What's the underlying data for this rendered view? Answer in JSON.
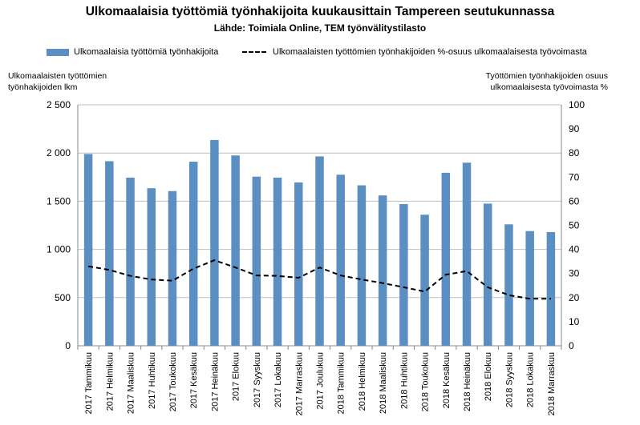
{
  "chart_data": {
    "type": "bar",
    "title": "Ulkomaalaisia työttömiä työnhakijoita kuukausittain Tampereen seutukunnassa",
    "subtitle": "Lähde: Toimiala Online, TEM työnvälitystilasto",
    "ylabel_left": "Ulkomaalaisten työttömien työnhakijoiden lkm",
    "ylabel_right": "Työttömien työnhakijoiden osuus ulkomaalaisesta työvoimasta %",
    "ylim_left": [
      0,
      2500
    ],
    "ylim_right": [
      0,
      100
    ],
    "yticks_left": [
      "0",
      "500",
      "1 000",
      "1 500",
      "2 000",
      "2 500"
    ],
    "yticks_right": [
      "0",
      "10",
      "20",
      "30",
      "40",
      "50",
      "60",
      "70",
      "80",
      "90",
      "100"
    ],
    "grid": true,
    "legend_position": "top",
    "categories": [
      "2017 Tammikuu",
      "2017 Helmikuu",
      "2017 Maaliskuu",
      "2017 Huhtikuu",
      "2017 Toukokuu",
      "2017 Kesäkuu",
      "2017 Heinäkuu",
      "2017 Elokuu",
      "2017 Syyskuu",
      "2017 Lokakuu",
      "2017 Marraskuu",
      "2017 Joulukuu",
      "2018 Tammikuu",
      "2018 Helmikuu",
      "2018 Maaliskuu",
      "2018 Huhtikuu",
      "2018 Toukokuu",
      "2018 Kesäkuu",
      "2018 Heinäkuu",
      "2018 Elokuu",
      "2018 Syyskuu",
      "2018 Lokakuu",
      "2018 Marraskuu"
    ],
    "series": [
      {
        "name": "Ulkomaalaisia työttömiä työnhakijoita",
        "type": "bar",
        "axis": "left",
        "color": "#5b8fc2",
        "values": [
          1990,
          1915,
          1745,
          1635,
          1605,
          1910,
          2135,
          1975,
          1755,
          1745,
          1695,
          1965,
          1775,
          1665,
          1560,
          1470,
          1360,
          1795,
          1900,
          1475,
          1260,
          1190,
          1180
        ]
      },
      {
        "name": "Ulkomaalaisten työttömien työnhakijoiden %-osuus ulkomaalaisesta työvoimasta",
        "type": "line",
        "style": "dashed",
        "axis": "right",
        "color": "#000000",
        "values": [
          33,
          31.5,
          29,
          27.5,
          27,
          32,
          35.5,
          32.5,
          29.2,
          29,
          28.2,
          32.5,
          29.2,
          27.5,
          26,
          24.3,
          22.5,
          29.5,
          31,
          24.3,
          21,
          19.5,
          19.5
        ]
      }
    ]
  }
}
